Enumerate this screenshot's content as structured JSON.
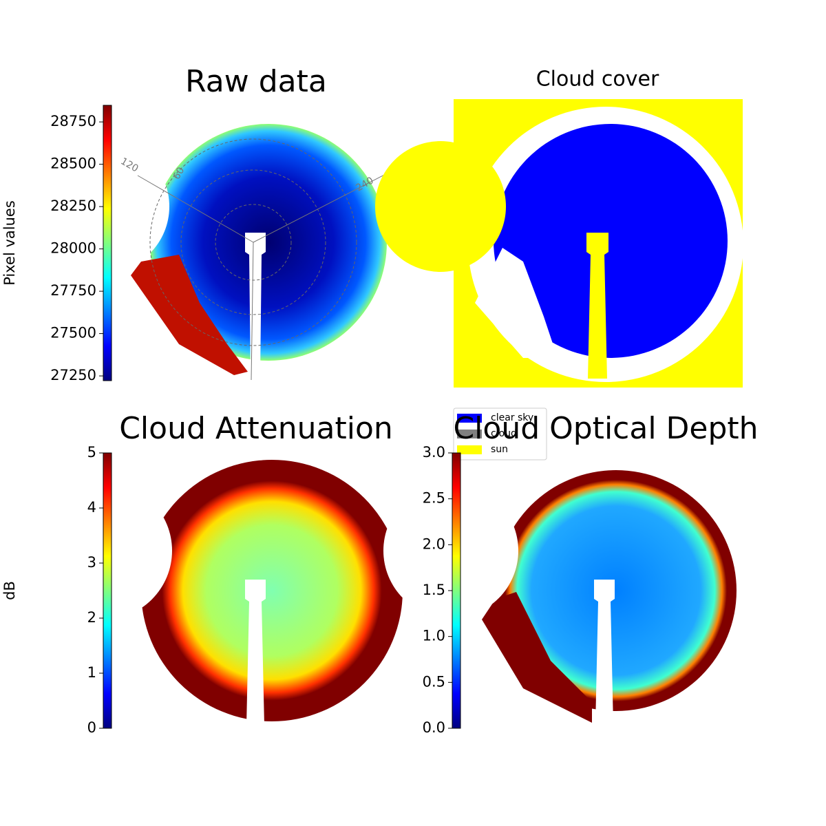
{
  "chart_data": [
    {
      "type": "image",
      "title": "Raw data",
      "colormap": "jet",
      "angle_labels": [
        "120",
        "60",
        "240"
      ],
      "colorbar": {
        "label": "Pixel values",
        "ylim": [
          27222,
          28848
        ],
        "yticks": [
          27250,
          27500,
          27750,
          28000,
          28250,
          28500,
          28750
        ]
      }
    },
    {
      "type": "image",
      "title": "Cloud cover",
      "legend": [
        {
          "name": "clear sky",
          "color": "#0000ff"
        },
        {
          "name": "cloud",
          "color": "#808080"
        },
        {
          "name": "sun",
          "color": "#ffff00"
        }
      ]
    },
    {
      "type": "image",
      "title": "Cloud Attenuation",
      "colormap": "jet",
      "colorbar": {
        "label": "dB",
        "ylim": [
          0,
          5
        ],
        "yticks": [
          0,
          1,
          2,
          3,
          4,
          5
        ]
      }
    },
    {
      "type": "image",
      "title": "Cloud Optical Depth",
      "colormap": "jet",
      "colorbar": {
        "ylim": [
          0,
          3
        ],
        "yticks": [
          {
            "value": 0,
            "label": "0.0"
          },
          0.5,
          {
            "value": 1,
            "label": "1.0"
          },
          1.5,
          {
            "value": 2,
            "label": "2.0"
          },
          2.5,
          {
            "value": 3,
            "label": "3.0"
          }
        ]
      }
    }
  ]
}
